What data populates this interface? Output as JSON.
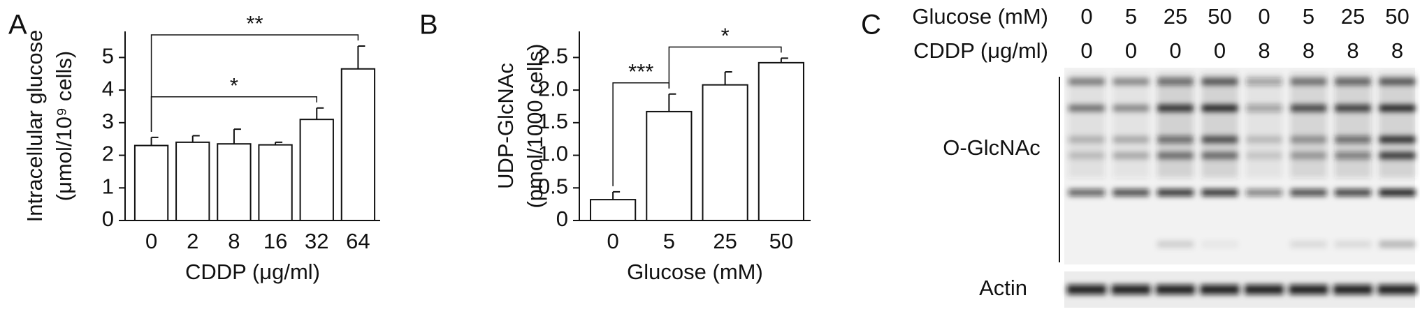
{
  "chart_data": [
    {
      "type": "bar",
      "panel": "A",
      "ylabel": [
        "Intracellular glucose",
        "(μmol/10⁹ cells)"
      ],
      "xlabel": "CDDP (μg/ml)",
      "categories": [
        "0",
        "2",
        "8",
        "16",
        "32",
        "64"
      ],
      "values": [
        2.3,
        2.4,
        2.35,
        2.32,
        3.1,
        4.65
      ],
      "errors": [
        0.25,
        0.2,
        0.45,
        0.08,
        0.35,
        0.7
      ],
      "color": "#ffffff",
      "ylim": [
        0,
        5.8
      ],
      "yticks": [
        0,
        1,
        2,
        3,
        4,
        5
      ],
      "annotations": [
        {
          "text": "**",
          "from": 0,
          "to": 5
        },
        {
          "text": "*",
          "from": 0,
          "to": 4
        }
      ]
    },
    {
      "type": "bar",
      "panel": "B",
      "ylabel": [
        "UDP-GlcNAc",
        "(pmol/1000 cells)"
      ],
      "xlabel": "Glucose (mM)",
      "categories": [
        "0",
        "5",
        "25",
        "50"
      ],
      "values": [
        0.32,
        1.67,
        2.08,
        2.42
      ],
      "errors": [
        0.12,
        0.27,
        0.2,
        0.07
      ],
      "color": "#ffffff",
      "ylim": [
        0,
        2.9
      ],
      "yticks": [
        0,
        0.5,
        {
          "value": 1,
          "label": "1.0"
        },
        1.5,
        {
          "value": 2,
          "label": "2.0"
        },
        2.5
      ],
      "annotations": [
        {
          "text": "***",
          "from": 0,
          "to": 1
        },
        {
          "text": "*",
          "from": 1,
          "to": 3
        }
      ]
    }
  ],
  "blot": {
    "panel": "C",
    "rows": [
      {
        "label": "Glucose (mM)",
        "values": [
          "0",
          "5",
          "25",
          "50",
          "0",
          "5",
          "25",
          "50"
        ]
      },
      {
        "label": "CDDP (μg/ml)",
        "values": [
          "0",
          "0",
          "0",
          "0",
          "8",
          "8",
          "8",
          "8"
        ]
      }
    ],
    "bands": [
      "O-GlcNAc",
      "Actin"
    ]
  }
}
